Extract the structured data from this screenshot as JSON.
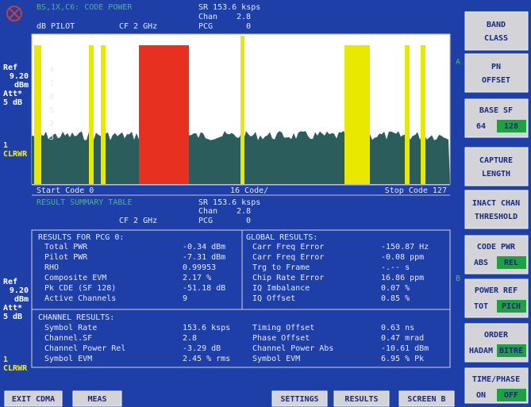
{
  "header": {
    "title": "BS,1X,C6: CODE POWER",
    "symbol_rate": "SR 153.6 ksps",
    "chan_label": "Chan",
    "chan_value": "2.8",
    "pcg_label": "PCG",
    "pcg_value": "0",
    "y_unit": "dB PILOT",
    "center_freq": "CF 2 GHz"
  },
  "plot": {
    "channel_numbers": [
      "4",
      "1",
      "8",
      "5",
      "2",
      "3"
    ],
    "start": "Start Code 0",
    "step": "16 Code/",
    "stop": "Stop Code 127"
  },
  "side_a": {
    "ref": "Ref",
    "ref_level": "9.20",
    "ref_unit": "dBm",
    "att": "Att*",
    "att_value": "5 dB",
    "trace": "1",
    "trace_mode": "CLRWR",
    "screen": "A"
  },
  "table_header": {
    "title": "RESULT SUMMARY TABLE",
    "symbol_rate": "SR 153.6 ksps",
    "chan_label": "Chan",
    "chan_value": "2.8",
    "center_freq": "CF 2 GHz",
    "pcg_label": "PCG",
    "pcg_value": "0"
  },
  "side_b": {
    "ref": "Ref",
    "ref_level": "9.20",
    "ref_unit": "dBm",
    "att": "Att*",
    "att_value": "5 dB",
    "trace": "1",
    "trace_mode": "CLRWR",
    "screen": "B"
  },
  "results": {
    "pcg_title": "RESULTS FOR PCG  0:",
    "pcg_rows": [
      [
        "Total PWR",
        "-0.34 dBm"
      ],
      [
        "Pilot PWR",
        "-7.31 dBm"
      ],
      [
        "RHO",
        "0.99953"
      ],
      [
        "Composite EVM",
        "2.17 %"
      ],
      [
        "Pk CDE (SF 128)",
        "-51.18 dB"
      ],
      [
        "Active Channels",
        "9"
      ]
    ],
    "global_title": "GLOBAL RESULTS:",
    "global_rows": [
      [
        "Carr Freq Error",
        "-150.87 Hz"
      ],
      [
        "Carr Freq Error",
        "-0.08 ppm"
      ],
      [
        "Trg to Frame",
        "-.-- s"
      ],
      [
        "Chip Rate Error",
        "16.86 ppm"
      ],
      [
        "IQ Imbalance",
        "0.07 %"
      ],
      [
        "IQ Offset",
        "0.85 %"
      ]
    ],
    "channel_title": "CHANNEL RESULTS:",
    "channel_rows": [
      [
        "Symbol Rate",
        "153.6 ksps",
        "Timing Offset",
        "0.63 ns"
      ],
      [
        "Channel.SF",
        "2.8",
        "Phase Offset",
        "0.47 mrad"
      ],
      [
        "Channel Power Rel",
        "-3.29 dB",
        "Channel Power Abs",
        "-10.61 dBm"
      ],
      [
        "Symbol EVM",
        "2.45 % rms",
        "Symbol EVM",
        "6.95 % Pk"
      ]
    ]
  },
  "softkeys": [
    {
      "lines": [
        "BAND",
        "CLASS"
      ]
    },
    {
      "lines": [
        "PN",
        "OFFSET"
      ]
    },
    {
      "label": "BASE SF",
      "options": [
        "64",
        "128"
      ]
    },
    {
      "lines": [
        "CAPTURE",
        "LENGTH"
      ]
    },
    {
      "lines": [
        "INACT CHAN",
        "THRESHOLD"
      ]
    },
    {
      "label": "CODE PWR",
      "options": [
        "ABS",
        "REL"
      ]
    },
    {
      "label": "POWER REF",
      "options": [
        "TOT",
        "PICH"
      ]
    },
    {
      "label": "ORDER",
      "options": [
        "HADAM",
        "BITRE"
      ]
    },
    {
      "label": "TIME/PHASE",
      "options": [
        "ON",
        "OFF"
      ]
    }
  ],
  "buttons": [
    "EXIT CDMA",
    "MEAS",
    "SETTINGS",
    "RESULTS",
    "SCREEN B"
  ]
}
